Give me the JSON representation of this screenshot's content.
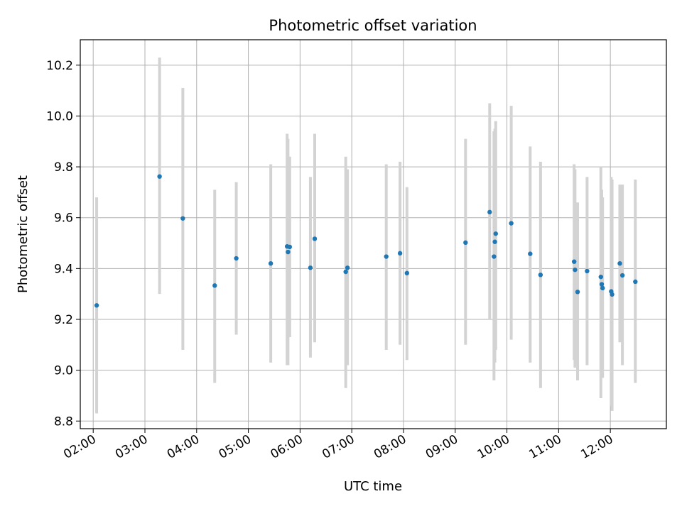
{
  "chart_data": {
    "type": "scatter",
    "title": "Photometric offset variation",
    "xlabel": "UTC time",
    "ylabel": "Photometric offset",
    "xlim": [
      "01:45",
      "13:05"
    ],
    "ylim": [
      8.77,
      10.3
    ],
    "x_ticks": [
      "02:00",
      "03:00",
      "04:00",
      "05:00",
      "06:00",
      "07:00",
      "08:00",
      "09:00",
      "10:00",
      "11:00",
      "12:00"
    ],
    "y_ticks": [
      8.8,
      9.0,
      9.2,
      9.4,
      9.6,
      9.8,
      10.0,
      10.2
    ],
    "grid": true,
    "colors": {
      "point": "#1f77b4",
      "errorbar": "#d3d3d3",
      "grid": "#b0b0b0"
    },
    "series": [
      {
        "points": [
          {
            "x": "02:04",
            "y": 9.255,
            "lo": 8.83,
            "hi": 9.68
          },
          {
            "x": "03:17",
            "y": 9.762,
            "lo": 9.3,
            "hi": 10.23
          },
          {
            "x": "03:44",
            "y": 9.597,
            "lo": 9.08,
            "hi": 10.11
          },
          {
            "x": "04:21",
            "y": 9.333,
            "lo": 8.95,
            "hi": 9.71
          },
          {
            "x": "04:46",
            "y": 9.44,
            "lo": 9.14,
            "hi": 9.74
          },
          {
            "x": "05:26",
            "y": 9.42,
            "lo": 9.03,
            "hi": 9.81
          },
          {
            "x": "05:45",
            "y": 9.487,
            "lo": 9.02,
            "hi": 9.93
          },
          {
            "x": "05:46",
            "y": 9.465,
            "lo": 9.02,
            "hi": 9.91
          },
          {
            "x": "05:48",
            "y": 9.485,
            "lo": 9.13,
            "hi": 9.84
          },
          {
            "x": "06:12",
            "y": 9.403,
            "lo": 9.05,
            "hi": 9.76
          },
          {
            "x": "06:17",
            "y": 9.517,
            "lo": 9.11,
            "hi": 9.93
          },
          {
            "x": "06:53",
            "y": 9.387,
            "lo": 8.93,
            "hi": 9.84
          },
          {
            "x": "06:55",
            "y": 9.403,
            "lo": 9.02,
            "hi": 9.79
          },
          {
            "x": "07:40",
            "y": 9.447,
            "lo": 9.08,
            "hi": 9.81
          },
          {
            "x": "07:56",
            "y": 9.46,
            "lo": 9.1,
            "hi": 9.82
          },
          {
            "x": "08:04",
            "y": 9.382,
            "lo": 9.04,
            "hi": 9.72
          },
          {
            "x": "09:12",
            "y": 9.502,
            "lo": 9.1,
            "hi": 9.91
          },
          {
            "x": "09:40",
            "y": 9.622,
            "lo": 9.2,
            "hi": 10.05
          },
          {
            "x": "09:45",
            "y": 9.447,
            "lo": 8.96,
            "hi": 9.94
          },
          {
            "x": "09:46",
            "y": 9.505,
            "lo": 9.03,
            "hi": 9.95
          },
          {
            "x": "09:47",
            "y": 9.537,
            "lo": 9.08,
            "hi": 9.98
          },
          {
            "x": "10:05",
            "y": 9.578,
            "lo": 9.12,
            "hi": 10.04
          },
          {
            "x": "10:27",
            "y": 9.458,
            "lo": 9.03,
            "hi": 9.88
          },
          {
            "x": "10:39",
            "y": 9.375,
            "lo": 8.93,
            "hi": 9.82
          },
          {
            "x": "11:18",
            "y": 9.427,
            "lo": 9.04,
            "hi": 9.81
          },
          {
            "x": "11:19",
            "y": 9.395,
            "lo": 9.01,
            "hi": 9.79
          },
          {
            "x": "11:22",
            "y": 9.308,
            "lo": 8.96,
            "hi": 9.66
          },
          {
            "x": "11:33",
            "y": 9.39,
            "lo": 9.02,
            "hi": 9.76
          },
          {
            "x": "11:49",
            "y": 9.367,
            "lo": 8.89,
            "hi": 9.8
          },
          {
            "x": "11:50",
            "y": 9.338,
            "lo": 8.97,
            "hi": 9.71
          },
          {
            "x": "11:51",
            "y": 9.323,
            "lo": 8.97,
            "hi": 9.68
          },
          {
            "x": "12:01",
            "y": 9.31,
            "lo": 8.86,
            "hi": 9.76
          },
          {
            "x": "12:02",
            "y": 9.298,
            "lo": 8.84,
            "hi": 9.75
          },
          {
            "x": "12:11",
            "y": 9.42,
            "lo": 9.11,
            "hi": 9.73
          },
          {
            "x": "12:14",
            "y": 9.373,
            "lo": 9.02,
            "hi": 9.73
          },
          {
            "x": "12:29",
            "y": 9.348,
            "lo": 8.95,
            "hi": 9.75
          }
        ]
      }
    ]
  }
}
